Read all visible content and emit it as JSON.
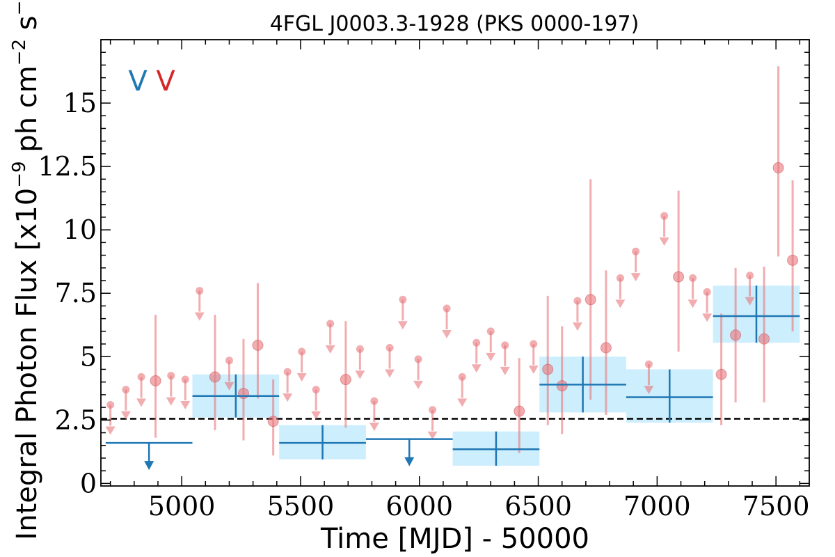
{
  "chart_data": {
    "type": "scatter",
    "title": "4FGL J0003.3-1928 (PKS 0000-197)",
    "xlabel": "Time [MJD] - 50000",
    "ylabel": "Integral Photon Flux [x10$^{-9}$ ph cm$^{-2}$ s$^{-1}$]",
    "ylabel_parts": {
      "main": "Integral Photon Flux [x10",
      "exp1": "−9",
      "mid": " ph cm",
      "exp2": "−2",
      "mid2": " s",
      "exp3": "−1",
      "end": "]"
    },
    "xlim": [
      4660,
      7640
    ],
    "ylim": [
      -0.1,
      17.5
    ],
    "xticks": [
      5000,
      5500,
      6000,
      6500,
      7000,
      7500
    ],
    "xtick_labels": [
      "5000",
      "5500",
      "6000",
      "6500",
      "7000",
      "7500"
    ],
    "yticks": [
      0,
      2.5,
      5,
      7.5,
      10,
      12.5,
      15
    ],
    "ytick_labels": [
      "0",
      "2.5",
      "5",
      "7.5",
      "10",
      "12.5",
      "15"
    ],
    "grid": false,
    "legend": {
      "placement": "top-left",
      "entries": [
        {
          "label": "V",
          "color": "#1f77b4"
        },
        {
          "label": "V",
          "color": "#d62728"
        }
      ]
    },
    "reference_line": {
      "y": 2.55,
      "style": "dashed",
      "color": "#000000"
    },
    "series": [
      {
        "kind": "binned",
        "color": "#1f77b4",
        "fill_color": "#cdeefc",
        "bins": [
          {
            "x0": 4680,
            "x1": 5045,
            "y": 1.6,
            "upper_limit": true
          },
          {
            "x0": 5045,
            "x1": 5410,
            "y": 3.45,
            "ylo": 2.6,
            "yhi": 4.3
          },
          {
            "x0": 5410,
            "x1": 5775,
            "y": 1.6,
            "ylo": 0.95,
            "yhi": 2.3
          },
          {
            "x0": 5775,
            "x1": 6140,
            "y": 1.75,
            "upper_limit": true
          },
          {
            "x0": 6140,
            "x1": 6505,
            "y": 1.35,
            "ylo": 0.7,
            "yhi": 2.05
          },
          {
            "x0": 6505,
            "x1": 6870,
            "y": 3.9,
            "ylo": 2.8,
            "yhi": 5.0
          },
          {
            "x0": 6870,
            "x1": 7235,
            "y": 3.4,
            "ylo": 2.4,
            "yhi": 4.5
          },
          {
            "x0": 7235,
            "x1": 7600,
            "y": 6.6,
            "ylo": 5.55,
            "yhi": 7.8
          }
        ]
      },
      {
        "kind": "points",
        "color": "#e8777b",
        "points": [
          {
            "x": 4700,
            "y": 3.1,
            "upper_limit": true
          },
          {
            "x": 4765,
            "y": 3.7,
            "upper_limit": true
          },
          {
            "x": 4830,
            "y": 4.2,
            "upper_limit": true
          },
          {
            "x": 4890,
            "y": 4.05,
            "ylo": 1.8,
            "yhi": 6.65
          },
          {
            "x": 4955,
            "y": 4.25,
            "upper_limit": true
          },
          {
            "x": 5015,
            "y": 4.1,
            "upper_limit": true
          },
          {
            "x": 5075,
            "y": 7.6,
            "upper_limit": true
          },
          {
            "x": 5140,
            "y": 4.2,
            "ylo": 2.1,
            "yhi": 6.65
          },
          {
            "x": 5200,
            "y": 4.85,
            "upper_limit": true
          },
          {
            "x": 5260,
            "y": 3.55,
            "ylo": 1.7,
            "yhi": 5.7
          },
          {
            "x": 5320,
            "y": 5.45,
            "ylo": 3.35,
            "yhi": 7.9
          },
          {
            "x": 5385,
            "y": 2.45,
            "ylo": 1.1,
            "yhi": 4.1
          },
          {
            "x": 5445,
            "y": 4.4,
            "upper_limit": true
          },
          {
            "x": 5505,
            "y": 5.2,
            "upper_limit": true
          },
          {
            "x": 5565,
            "y": 3.7,
            "upper_limit": true
          },
          {
            "x": 5625,
            "y": 6.3,
            "upper_limit": true
          },
          {
            "x": 5690,
            "y": 4.1,
            "ylo": 2.2,
            "yhi": 6.4
          },
          {
            "x": 5750,
            "y": 5.3,
            "upper_limit": true
          },
          {
            "x": 5810,
            "y": 3.25,
            "upper_limit": true
          },
          {
            "x": 5875,
            "y": 5.35,
            "upper_limit": true
          },
          {
            "x": 5930,
            "y": 7.25,
            "upper_limit": true
          },
          {
            "x": 5995,
            "y": 4.9,
            "upper_limit": true
          },
          {
            "x": 6055,
            "y": 2.9,
            "upper_limit": true
          },
          {
            "x": 6115,
            "y": 6.9,
            "upper_limit": true
          },
          {
            "x": 6180,
            "y": 4.2,
            "upper_limit": true
          },
          {
            "x": 6240,
            "y": 5.55,
            "upper_limit": true
          },
          {
            "x": 6300,
            "y": 6.0,
            "upper_limit": true
          },
          {
            "x": 6360,
            "y": 5.45,
            "upper_limit": true
          },
          {
            "x": 6420,
            "y": 2.85,
            "ylo": 1.2,
            "yhi": 4.95
          },
          {
            "x": 6480,
            "y": 5.5,
            "upper_limit": true
          },
          {
            "x": 6540,
            "y": 4.5,
            "ylo": 2.3,
            "yhi": 7.4
          },
          {
            "x": 6600,
            "y": 3.85,
            "ylo": 1.95,
            "yhi": 6.2
          },
          {
            "x": 6665,
            "y": 7.2,
            "upper_limit": true
          },
          {
            "x": 6720,
            "y": 7.25,
            "ylo": 3.3,
            "yhi": 12.0
          },
          {
            "x": 6785,
            "y": 5.35,
            "ylo": 2.7,
            "yhi": 8.4
          },
          {
            "x": 6845,
            "y": 8.1,
            "upper_limit": true
          },
          {
            "x": 6910,
            "y": 9.15,
            "upper_limit": true
          },
          {
            "x": 6965,
            "y": 4.7,
            "upper_limit": true
          },
          {
            "x": 7030,
            "y": 10.55,
            "upper_limit": true
          },
          {
            "x": 7090,
            "y": 8.15,
            "ylo": 5.2,
            "yhi": 11.55
          },
          {
            "x": 7150,
            "y": 8.1,
            "upper_limit": true
          },
          {
            "x": 7210,
            "y": 7.55,
            "upper_limit": true
          },
          {
            "x": 7270,
            "y": 4.3,
            "ylo": 2.3,
            "yhi": 6.7
          },
          {
            "x": 7330,
            "y": 5.85,
            "ylo": 3.2,
            "yhi": 8.5
          },
          {
            "x": 7390,
            "y": 8.2,
            "upper_limit": true
          },
          {
            "x": 7450,
            "y": 5.7,
            "ylo": 3.2,
            "yhi": 8.55
          },
          {
            "x": 7510,
            "y": 12.45,
            "ylo": 8.95,
            "yhi": 16.45
          },
          {
            "x": 7570,
            "y": 8.8,
            "ylo": 6.0,
            "yhi": 11.95
          }
        ]
      }
    ]
  }
}
